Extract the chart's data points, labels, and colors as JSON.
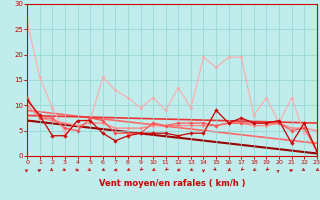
{
  "xlabel": "Vent moyen/en rafales ( km/h )",
  "xlim": [
    0,
    23
  ],
  "ylim": [
    0,
    30
  ],
  "yticks": [
    0,
    5,
    10,
    15,
    20,
    25,
    30
  ],
  "xticks": [
    0,
    1,
    2,
    3,
    4,
    5,
    6,
    7,
    8,
    9,
    10,
    11,
    12,
    13,
    14,
    15,
    16,
    17,
    18,
    19,
    20,
    21,
    22,
    23
  ],
  "background_color": "#c0ecec",
  "grid_color": "#90d4d4",
  "series": [
    {
      "x": [
        0,
        1,
        2,
        3,
        4,
        5,
        6,
        7,
        8,
        9,
        10,
        11,
        12,
        13,
        14,
        15,
        16,
        17,
        18,
        19,
        20,
        21,
        22
      ],
      "y": [
        26.5,
        15.5,
        9.5,
        4.5,
        7.0,
        7.0,
        15.5,
        13.0,
        11.5,
        9.5,
        11.5,
        9.0,
        13.5,
        9.5,
        19.5,
        17.5,
        19.5,
        19.5,
        8.0,
        11.5,
        6.5,
        11.5,
        4.5
      ],
      "color": "#ffaaaa",
      "lw": 0.8,
      "marker": "o",
      "ms": 1.8,
      "zorder": 2
    },
    {
      "x": [
        0,
        1,
        2,
        3,
        4,
        5,
        6,
        7,
        8,
        9,
        10,
        11,
        12,
        13,
        14,
        15,
        16,
        17,
        18,
        19,
        20,
        21,
        22,
        23
      ],
      "y": [
        11.5,
        7.5,
        7.5,
        5.5,
        5.0,
        7.5,
        7.0,
        4.5,
        4.5,
        4.5,
        6.5,
        6.0,
        6.5,
        6.5,
        6.5,
        6.0,
        6.5,
        6.5,
        6.5,
        6.5,
        6.5,
        5.0,
        5.5,
        1.0
      ],
      "color": "#ff5555",
      "lw": 0.9,
      "marker": "D",
      "ms": 1.8,
      "zorder": 3
    },
    {
      "x": [
        0,
        1,
        2,
        3,
        4,
        5,
        6,
        7,
        8,
        9,
        10,
        11,
        12,
        13,
        14,
        15,
        16,
        17,
        18,
        19,
        20,
        21,
        22,
        23
      ],
      "y": [
        11.0,
        8.0,
        4.0,
        4.0,
        7.0,
        7.0,
        4.5,
        3.0,
        4.0,
        4.5,
        4.5,
        4.5,
        4.0,
        4.5,
        4.5,
        9.0,
        6.5,
        7.5,
        6.5,
        6.5,
        7.0,
        2.5,
        6.5,
        1.0
      ],
      "color": "#cc0000",
      "lw": 0.9,
      "marker": "D",
      "ms": 1.8,
      "zorder": 3
    },
    {
      "x": [
        0,
        1,
        2,
        3,
        4,
        5,
        6,
        7,
        8,
        9,
        10,
        11,
        12,
        13,
        14,
        15,
        16,
        17,
        18,
        19,
        20,
        21,
        22,
        23
      ],
      "y": [
        10.0,
        7.5,
        7.0,
        6.5,
        6.0,
        6.5,
        6.5,
        5.5,
        5.5,
        5.5,
        6.0,
        6.0,
        6.0,
        6.0,
        6.0,
        6.0,
        6.5,
        6.5,
        6.0,
        6.0,
        6.5,
        5.5,
        5.5,
        5.0
      ],
      "color": "#ff8888",
      "lw": 1.0,
      "marker": "o",
      "ms": 1.5,
      "zorder": 2
    },
    {
      "x": [
        0,
        23
      ],
      "y": [
        9.0,
        2.5
      ],
      "color": "#ff6666",
      "lw": 1.2,
      "marker": null,
      "ms": 0,
      "zorder": 1
    },
    {
      "x": [
        0,
        23
      ],
      "y": [
        8.0,
        6.5
      ],
      "color": "#ee3333",
      "lw": 1.2,
      "marker": null,
      "ms": 0,
      "zorder": 1
    },
    {
      "x": [
        0,
        23
      ],
      "y": [
        7.0,
        0.5
      ],
      "color": "#990000",
      "lw": 1.5,
      "marker": null,
      "ms": 0,
      "zorder": 1
    }
  ],
  "arrows": {
    "x": [
      0,
      1,
      2,
      3,
      4,
      5,
      6,
      7,
      8,
      9,
      10,
      11,
      12,
      13,
      14,
      15,
      16,
      17,
      18,
      19,
      20,
      21,
      22,
      23
    ],
    "angles_deg": [
      45,
      30,
      -45,
      -45,
      -30,
      -45,
      -135,
      -150,
      -135,
      -120,
      -135,
      -120,
      -150,
      -135,
      -90,
      -60,
      -135,
      -120,
      -135,
      -120,
      60,
      30,
      -45,
      -135
    ],
    "color": "#cc0000"
  }
}
